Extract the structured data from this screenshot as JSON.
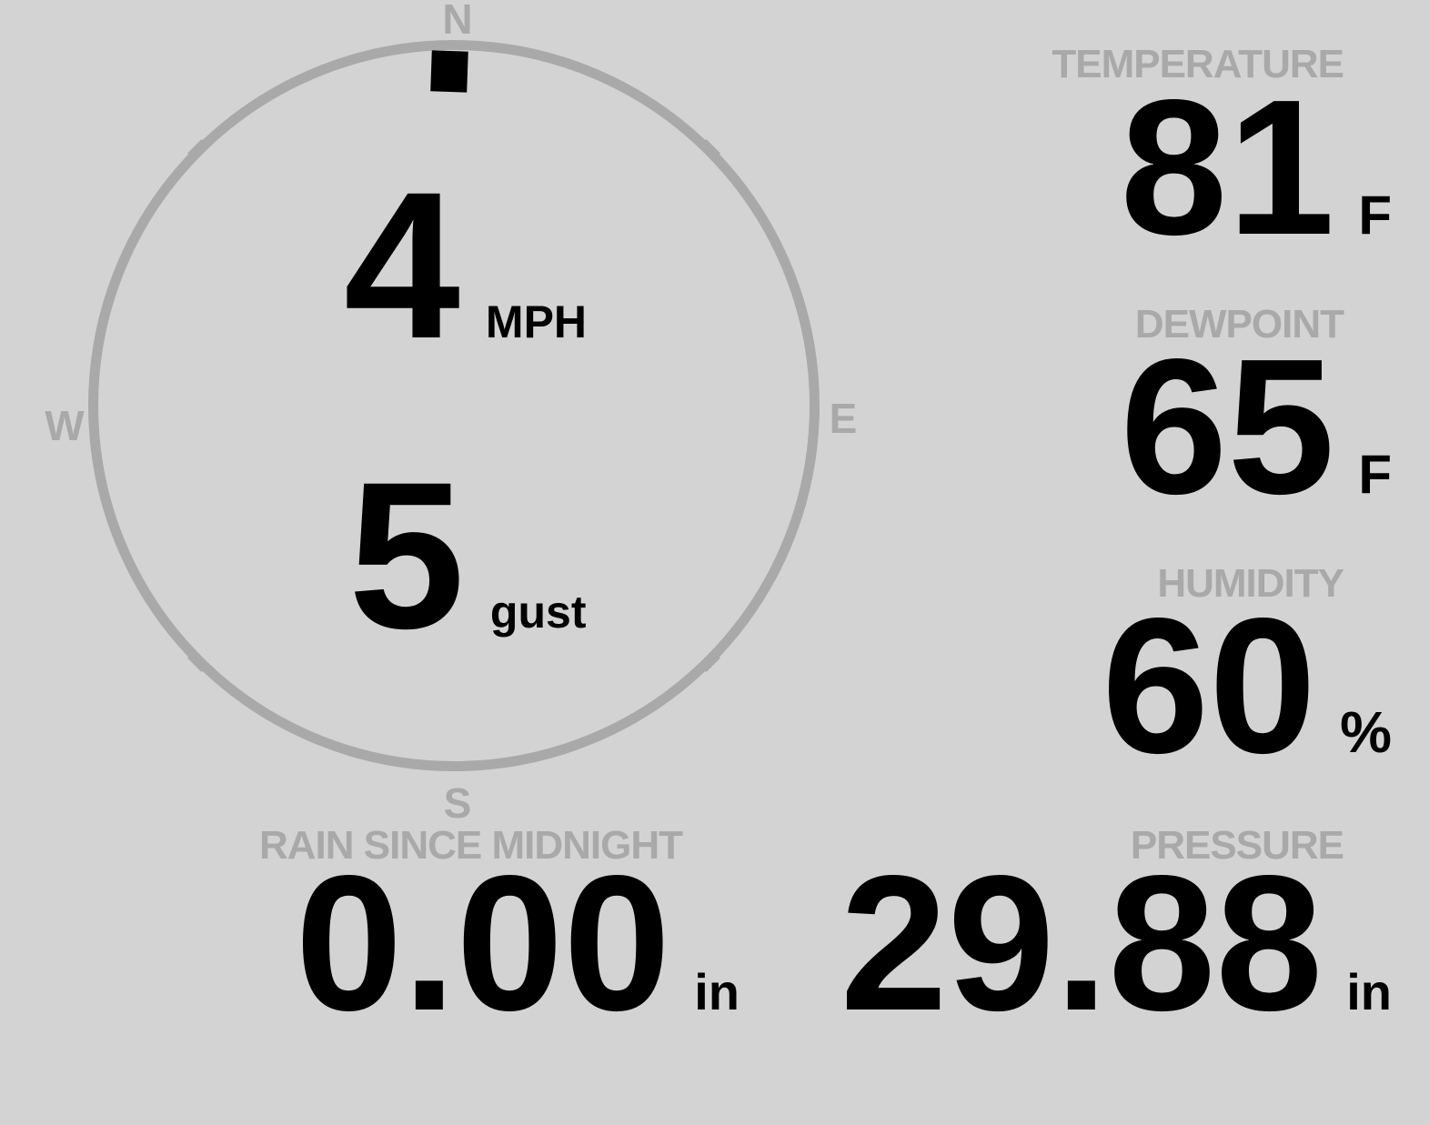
{
  "colors": {
    "background": "#d3d3d3",
    "muted_gray": "#a9a9a9",
    "value_black": "#000000"
  },
  "compass": {
    "cardinal_labels": {
      "north": "N",
      "east": "E",
      "south": "S",
      "west": "W"
    },
    "wind_direction": "N",
    "wind_speed": "4",
    "wind_speed_unit": "MPH",
    "wind_gust": "5",
    "wind_gust_unit": "gust"
  },
  "metrics": {
    "temperature": {
      "label": "TEMPERATURE",
      "value": "81",
      "unit": "F"
    },
    "dewpoint": {
      "label": "DEWPOINT",
      "value": "65",
      "unit": "F"
    },
    "humidity": {
      "label": "HUMIDITY",
      "value": "60",
      "unit": "%"
    },
    "rain": {
      "label": "RAIN SINCE MIDNIGHT",
      "value": "0.00",
      "unit": "in"
    },
    "pressure": {
      "label": "PRESSURE",
      "value": "29.88",
      "unit": "in"
    }
  }
}
